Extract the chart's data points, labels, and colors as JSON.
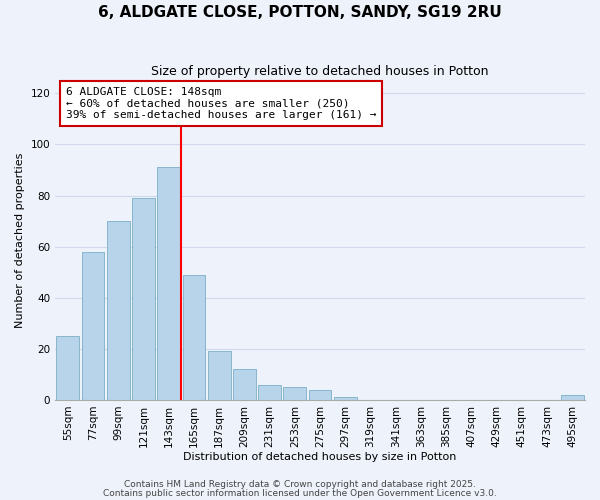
{
  "title": "6, ALDGATE CLOSE, POTTON, SANDY, SG19 2RU",
  "subtitle": "Size of property relative to detached houses in Potton",
  "xlabel": "Distribution of detached houses by size in Potton",
  "ylabel": "Number of detached properties",
  "categories": [
    "55sqm",
    "77sqm",
    "99sqm",
    "121sqm",
    "143sqm",
    "165sqm",
    "187sqm",
    "209sqm",
    "231sqm",
    "253sqm",
    "275sqm",
    "297sqm",
    "319sqm",
    "341sqm",
    "363sqm",
    "385sqm",
    "407sqm",
    "429sqm",
    "451sqm",
    "473sqm",
    "495sqm"
  ],
  "values": [
    25,
    58,
    70,
    79,
    91,
    49,
    19,
    12,
    6,
    5,
    4,
    1,
    0,
    0,
    0,
    0,
    0,
    0,
    0,
    0,
    2
  ],
  "bar_color": "#b8d4ea",
  "bar_edge_color": "#7aafc8",
  "vline_color": "red",
  "vline_index": 4,
  "annotation_lines": [
    "6 ALDGATE CLOSE: 148sqm",
    "← 60% of detached houses are smaller (250)",
    "39% of semi-detached houses are larger (161) →"
  ],
  "ylim": [
    0,
    125
  ],
  "yticks": [
    0,
    20,
    40,
    60,
    80,
    100,
    120
  ],
  "footnote1": "Contains HM Land Registry data © Crown copyright and database right 2025.",
  "footnote2": "Contains public sector information licensed under the Open Government Licence v3.0.",
  "background_color": "#eef2fa",
  "grid_color": "#d0d8ee",
  "title_fontsize": 11,
  "subtitle_fontsize": 9,
  "axis_label_fontsize": 8,
  "tick_fontsize": 7.5,
  "annotation_fontsize": 8,
  "footnote_fontsize": 6.5
}
